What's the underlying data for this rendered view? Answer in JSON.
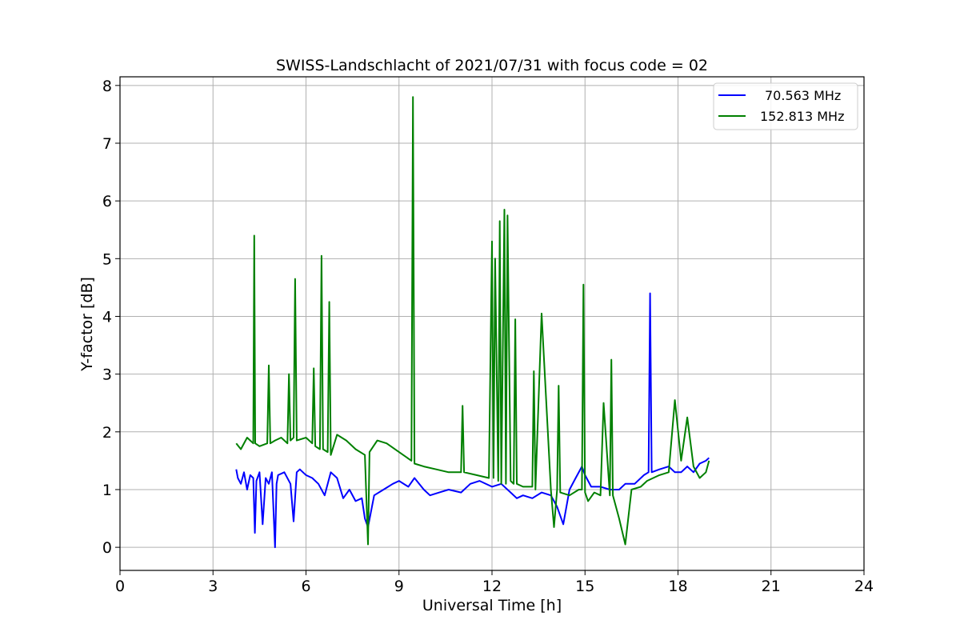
{
  "chart_data": {
    "type": "line",
    "title": "SWISS-Landschlacht of 2021/07/31 with focus code = 02",
    "xlabel": "Universal Time [h]",
    "ylabel": "Y-factor [dB]",
    "xlim": [
      0,
      24
    ],
    "ylim": [
      -0.4,
      8.15
    ],
    "xticks": [
      0,
      3,
      6,
      9,
      12,
      15,
      18,
      21,
      24
    ],
    "xtick_labels": [
      "0",
      "3",
      "6",
      "9",
      "12",
      "15",
      "18",
      "21",
      "24"
    ],
    "yticks": [
      0,
      1,
      2,
      3,
      4,
      5,
      6,
      7,
      8
    ],
    "ytick_labels": [
      "0",
      "1",
      "2",
      "3",
      "4",
      "5",
      "6",
      "7",
      "8"
    ],
    "grid": true,
    "legend_position": "top-right",
    "series": [
      {
        "name": "70.563 MHz",
        "color": "#0000ff",
        "x": [
          3.75,
          3.8,
          3.9,
          4.0,
          4.1,
          4.2,
          4.3,
          4.35,
          4.4,
          4.5,
          4.6,
          4.7,
          4.8,
          4.9,
          5.0,
          5.05,
          5.1,
          5.3,
          5.5,
          5.6,
          5.7,
          5.8,
          6.0,
          6.2,
          6.4,
          6.6,
          6.8,
          7.0,
          7.2,
          7.4,
          7.6,
          7.8,
          7.9,
          8.0,
          8.2,
          8.5,
          8.8,
          9.0,
          9.3,
          9.5,
          9.8,
          10.0,
          10.3,
          10.6,
          11.0,
          11.3,
          11.6,
          12.0,
          12.3,
          12.6,
          12.8,
          13.0,
          13.3,
          13.6,
          13.9,
          14.1,
          14.3,
          14.5,
          14.7,
          14.9,
          15.0,
          15.2,
          15.5,
          15.8,
          16.1,
          16.3,
          16.6,
          16.9,
          17.05,
          17.1,
          17.15,
          17.4,
          17.7,
          17.9,
          18.1,
          18.3,
          18.5,
          18.7,
          18.9,
          19.0
        ],
        "values": [
          1.35,
          1.2,
          1.1,
          1.3,
          1.0,
          1.25,
          1.2,
          0.25,
          1.15,
          1.3,
          0.4,
          1.2,
          1.1,
          1.3,
          0.0,
          1.1,
          1.25,
          1.3,
          1.1,
          0.45,
          1.3,
          1.35,
          1.25,
          1.2,
          1.1,
          0.9,
          1.3,
          1.2,
          0.85,
          1.0,
          0.8,
          0.85,
          0.5,
          0.35,
          0.9,
          1.0,
          1.1,
          1.15,
          1.05,
          1.2,
          1.0,
          0.9,
          0.95,
          1.0,
          0.95,
          1.1,
          1.15,
          1.05,
          1.1,
          0.95,
          0.85,
          0.9,
          0.85,
          0.95,
          0.9,
          0.7,
          0.4,
          1.0,
          1.2,
          1.4,
          1.25,
          1.05,
          1.05,
          1.0,
          1.0,
          1.1,
          1.1,
          1.25,
          1.3,
          4.4,
          1.3,
          1.35,
          1.4,
          1.3,
          1.3,
          1.4,
          1.3,
          1.45,
          1.5,
          1.55
        ]
      },
      {
        "name": "152.813 MHz",
        "color": "#008000",
        "x": [
          3.75,
          3.9,
          4.1,
          4.3,
          4.33,
          4.36,
          4.5,
          4.75,
          4.8,
          4.85,
          5.0,
          5.2,
          5.4,
          5.45,
          5.5,
          5.6,
          5.65,
          5.7,
          6.0,
          6.2,
          6.25,
          6.3,
          6.45,
          6.5,
          6.55,
          6.7,
          6.75,
          6.8,
          7.0,
          7.3,
          7.6,
          7.9,
          8.0,
          8.05,
          8.3,
          8.6,
          9.0,
          9.4,
          9.45,
          9.5,
          9.8,
          10.2,
          10.6,
          11.0,
          11.05,
          11.1,
          11.5,
          11.9,
          12.0,
          12.05,
          12.1,
          12.2,
          12.25,
          12.3,
          12.4,
          12.45,
          12.5,
          12.6,
          12.7,
          12.75,
          12.8,
          13.0,
          13.3,
          13.35,
          13.4,
          13.6,
          13.9,
          14.0,
          14.1,
          14.15,
          14.2,
          14.5,
          14.8,
          14.9,
          14.95,
          15.0,
          15.1,
          15.3,
          15.5,
          15.6,
          15.8,
          15.85,
          15.9,
          16.1,
          16.3,
          16.5,
          16.8,
          17.0,
          17.2,
          17.4,
          17.7,
          17.9,
          18.1,
          18.3,
          18.5,
          18.7,
          18.9,
          19.0
        ],
        "values": [
          1.8,
          1.7,
          1.9,
          1.8,
          5.4,
          1.8,
          1.75,
          1.8,
          3.15,
          1.8,
          1.85,
          1.9,
          1.8,
          3.0,
          1.85,
          1.9,
          4.65,
          1.85,
          1.9,
          1.8,
          3.1,
          1.75,
          1.7,
          5.05,
          1.7,
          1.65,
          4.25,
          1.6,
          1.95,
          1.85,
          1.7,
          1.6,
          0.05,
          1.65,
          1.85,
          1.8,
          1.65,
          1.5,
          7.8,
          1.45,
          1.4,
          1.35,
          1.3,
          1.3,
          2.45,
          1.3,
          1.25,
          1.2,
          5.3,
          1.2,
          5.0,
          1.15,
          5.65,
          1.1,
          5.85,
          1.1,
          5.75,
          1.15,
          1.1,
          3.95,
          1.1,
          1.05,
          1.05,
          3.05,
          1.0,
          4.05,
          1.0,
          0.35,
          1.0,
          2.8,
          0.95,
          0.9,
          1.0,
          1.0,
          4.55,
          0.95,
          0.8,
          0.95,
          0.9,
          2.5,
          0.9,
          3.25,
          0.9,
          0.5,
          0.05,
          1.0,
          1.05,
          1.15,
          1.2,
          1.25,
          1.3,
          2.55,
          1.5,
          2.25,
          1.4,
          1.2,
          1.3,
          1.5
        ]
      }
    ]
  }
}
